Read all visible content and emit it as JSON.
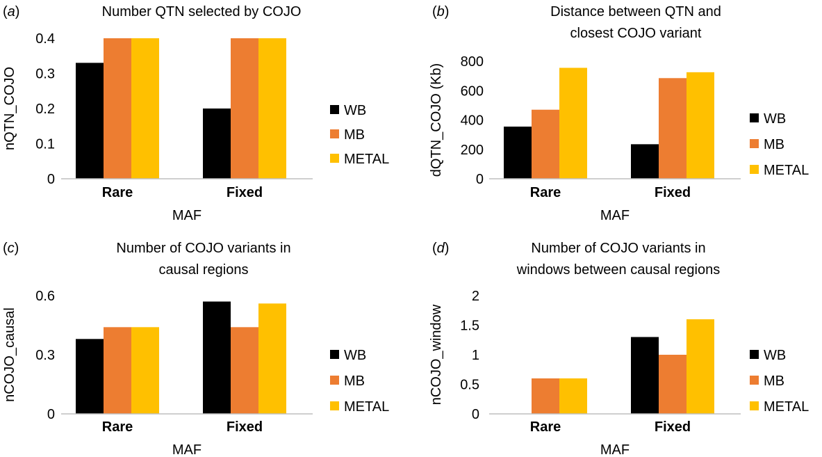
{
  "legend": [
    "WB",
    "MB",
    "METAL"
  ],
  "colors": {
    "WB": "#000000",
    "MB": "#ED7D31",
    "METAL": "#FFC000",
    "axis": "#BFBFBF"
  },
  "chart_data": [
    {
      "panel": "(a)",
      "type": "bar",
      "title": [
        "Number QTN selected by COJO"
      ],
      "xlabel": "MAF",
      "ylabel": "nQTN_COJO",
      "categories": [
        "Rare",
        "Fixed"
      ],
      "ylim": [
        0,
        0.4
      ],
      "yticks": [
        "0",
        "0.1",
        "0.2",
        "0.3",
        "0.4"
      ],
      "series": [
        {
          "name": "WB",
          "values": [
            0.33,
            0.2
          ]
        },
        {
          "name": "MB",
          "values": [
            0.4,
            0.4
          ]
        },
        {
          "name": "METAL",
          "values": [
            0.4,
            0.4
          ]
        }
      ],
      "legend_position": "right"
    },
    {
      "panel": "(b)",
      "type": "bar",
      "title": [
        "Distance between QTN and",
        "closest COJO variant"
      ],
      "xlabel": "MAF",
      "ylabel": "dQTN_COJO (Kb)",
      "categories": [
        "Rare",
        "Fixed"
      ],
      "ylim": [
        0,
        800
      ],
      "yticks": [
        "0",
        "200",
        "400",
        "600",
        "800"
      ],
      "series": [
        {
          "name": "WB",
          "values": [
            355,
            235
          ]
        },
        {
          "name": "MB",
          "values": [
            470,
            685
          ]
        },
        {
          "name": "METAL",
          "values": [
            755,
            725
          ]
        }
      ],
      "legend_position": "right"
    },
    {
      "panel": "(c)",
      "type": "bar",
      "title": [
        "Number of COJO variants in",
        "causal regions"
      ],
      "xlabel": "MAF",
      "ylabel": "nCOJO_causal",
      "categories": [
        "Rare",
        "Fixed"
      ],
      "ylim": [
        0,
        0.6
      ],
      "yticks": [
        "0",
        "0.3",
        "0.6"
      ],
      "series": [
        {
          "name": "WB",
          "values": [
            0.38,
            0.57
          ]
        },
        {
          "name": "MB",
          "values": [
            0.44,
            0.44
          ]
        },
        {
          "name": "METAL",
          "values": [
            0.44,
            0.56
          ]
        }
      ],
      "legend_position": "right"
    },
    {
      "panel": "(d)",
      "type": "bar",
      "title": [
        "Number of COJO variants in",
        "windows between causal regions"
      ],
      "xlabel": "MAF",
      "ylabel": "nCOJO_window",
      "categories": [
        "Rare",
        "Fixed"
      ],
      "ylim": [
        0,
        2
      ],
      "yticks": [
        "0",
        "0.5",
        "1",
        "1.5",
        "2"
      ],
      "series": [
        {
          "name": "WB",
          "values": [
            0,
            1.3
          ]
        },
        {
          "name": "MB",
          "values": [
            0.6,
            1.0
          ]
        },
        {
          "name": "METAL",
          "values": [
            0.6,
            1.6
          ]
        }
      ],
      "legend_position": "right"
    }
  ]
}
